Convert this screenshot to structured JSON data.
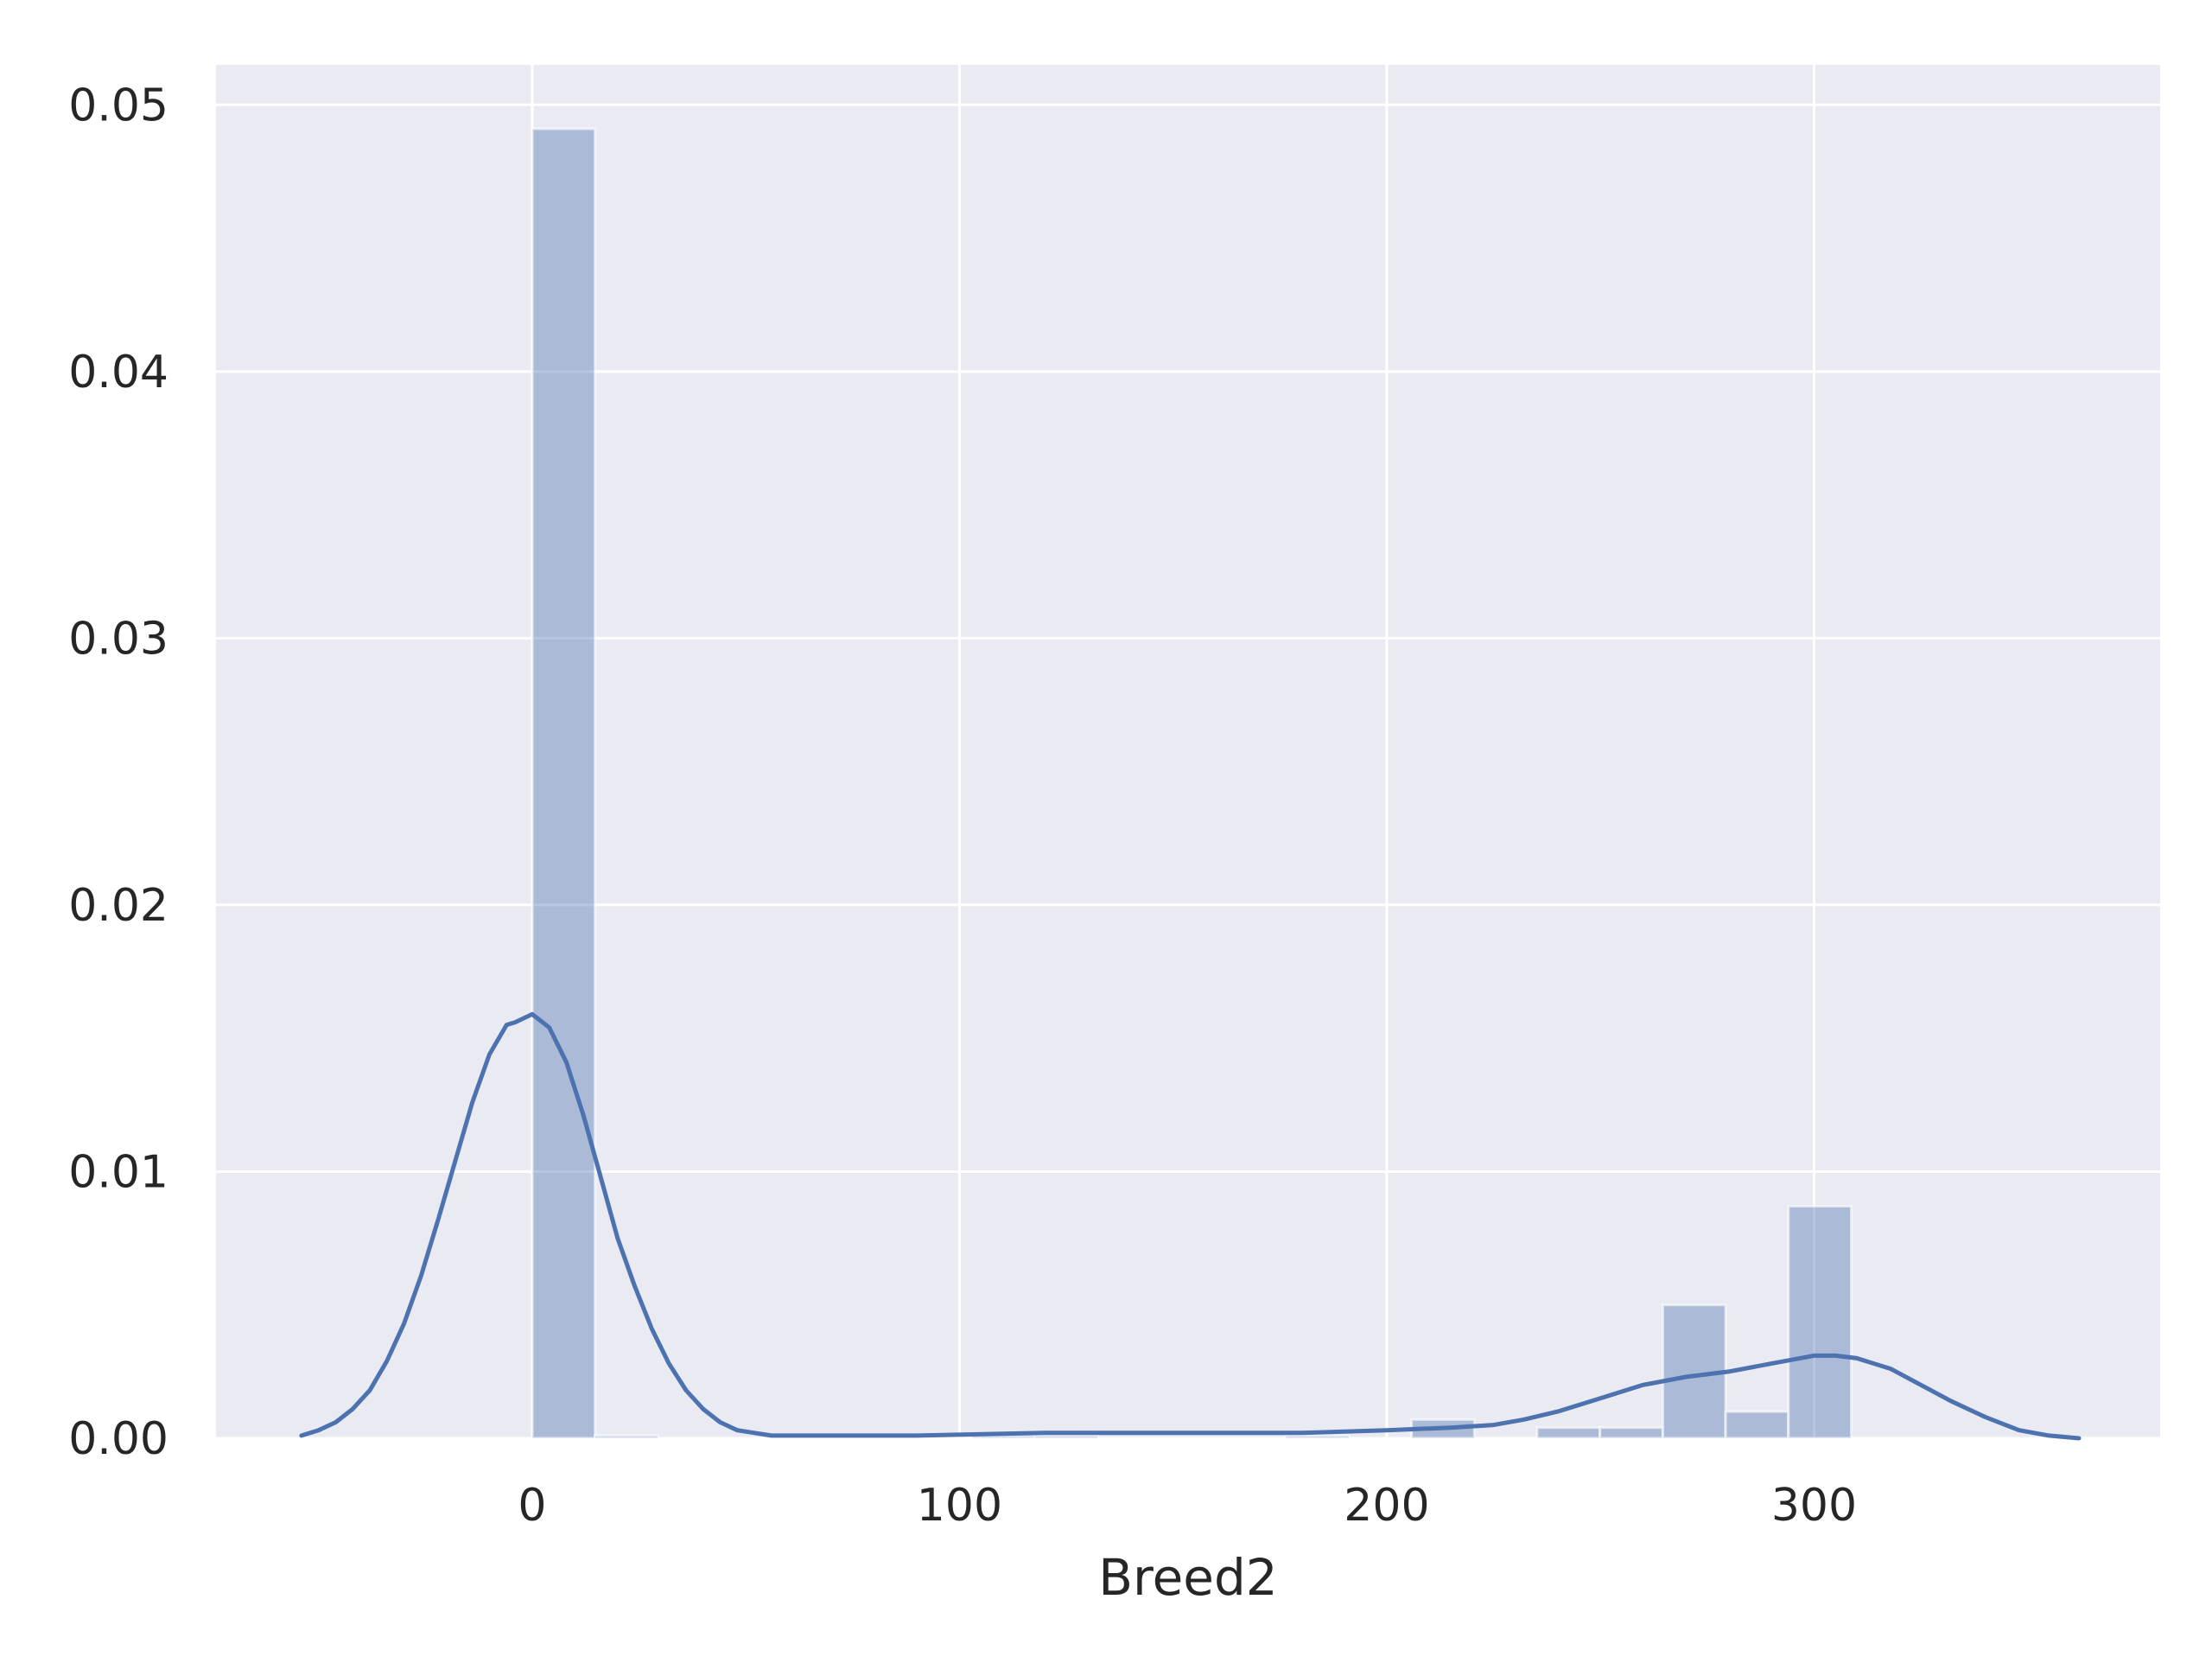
{
  "chart_data": {
    "type": "bar",
    "subtype": "histogram-with-kde",
    "title": "",
    "xlabel": "Breed2",
    "ylabel": "",
    "xlim": [
      -74,
      381
    ],
    "ylim": [
      0,
      0.0515
    ],
    "x_ticks": [
      0,
      100,
      200,
      300
    ],
    "x_tick_labels": [
      "0",
      "100",
      "200",
      "300"
    ],
    "y_ticks": [
      0,
      0.01,
      0.02,
      0.03,
      0.04,
      0.05
    ],
    "y_tick_labels": [
      "0.00",
      "0.01",
      "0.02",
      "0.03",
      "0.04",
      "0.05"
    ],
    "grid": true,
    "style": "seaborn-darkgrid",
    "colors": {
      "plot_background": "#eaeaf2",
      "grid": "#ffffff",
      "bar_fill": "#4c72b0",
      "bar_opacity": 0.4,
      "kde_line": "#4c72b0"
    },
    "histogram": {
      "bins": [
        {
          "x0": 0,
          "x1": 14.7,
          "density": 0.0491
        },
        {
          "x0": 14.7,
          "x1": 29.4,
          "density": 0.0001
        },
        {
          "x0": 29.4,
          "x1": 44.1,
          "density": 0
        },
        {
          "x0": 44.1,
          "x1": 58.8,
          "density": 0
        },
        {
          "x0": 58.8,
          "x1": 73.5,
          "density": 0
        },
        {
          "x0": 73.5,
          "x1": 88.2,
          "density": 0
        },
        {
          "x0": 88.2,
          "x1": 102.9,
          "density": 0
        },
        {
          "x0": 102.9,
          "x1": 117.6,
          "density": 0.0001
        },
        {
          "x0": 117.6,
          "x1": 132.3,
          "density": 0.0001
        },
        {
          "x0": 132.3,
          "x1": 147.0,
          "density": 0
        },
        {
          "x0": 147.0,
          "x1": 161.7,
          "density": 0
        },
        {
          "x0": 161.7,
          "x1": 176.4,
          "density": 0
        },
        {
          "x0": 176.4,
          "x1": 191.1,
          "density": 0.0001
        },
        {
          "x0": 191.1,
          "x1": 205.8,
          "density": 0
        },
        {
          "x0": 205.8,
          "x1": 220.5,
          "density": 0.0007
        },
        {
          "x0": 220.5,
          "x1": 235.2,
          "density": 0
        },
        {
          "x0": 235.2,
          "x1": 249.9,
          "density": 0.0004
        },
        {
          "x0": 249.9,
          "x1": 264.6,
          "density": 0.0004
        },
        {
          "x0": 264.6,
          "x1": 279.3,
          "density": 0.005
        },
        {
          "x0": 279.3,
          "x1": 294.0,
          "density": 0.001
        },
        {
          "x0": 294.0,
          "x1": 308.7,
          "density": 0.0087
        }
      ]
    },
    "kde": {
      "x": [
        -54,
        -50,
        -46,
        -42,
        -38,
        -34,
        -30,
        -26,
        -22,
        -18,
        -14,
        -10,
        -6,
        -4,
        0,
        4,
        8,
        12,
        16,
        20,
        24,
        28,
        32,
        36,
        40,
        44,
        48,
        52,
        56,
        60,
        70,
        90,
        120,
        150,
        180,
        200,
        215,
        225,
        232,
        240,
        250,
        260,
        270,
        280,
        290,
        300,
        305,
        310,
        318,
        325,
        332,
        340,
        348,
        355,
        362
      ],
      "y": [
        0.0001,
        0.0003,
        0.0006,
        0.0011,
        0.0018,
        0.0029,
        0.0043,
        0.0061,
        0.0082,
        0.0104,
        0.0126,
        0.0144,
        0.0155,
        0.0156,
        0.0159,
        0.0154,
        0.0141,
        0.0121,
        0.0098,
        0.0075,
        0.0057,
        0.0041,
        0.0028,
        0.0018,
        0.0011,
        0.0006,
        0.0003,
        0.0002,
        0.0001,
        0.0001,
        0.0001,
        0.0001,
        0.0002,
        0.0002,
        0.0002,
        0.0003,
        0.0004,
        0.0005,
        0.0007,
        0.001,
        0.0015,
        0.002,
        0.0023,
        0.0025,
        0.0028,
        0.0031,
        0.0031,
        0.003,
        0.0026,
        0.002,
        0.0014,
        0.0008,
        0.0003,
        0.0001,
        0.0
      ]
    }
  }
}
